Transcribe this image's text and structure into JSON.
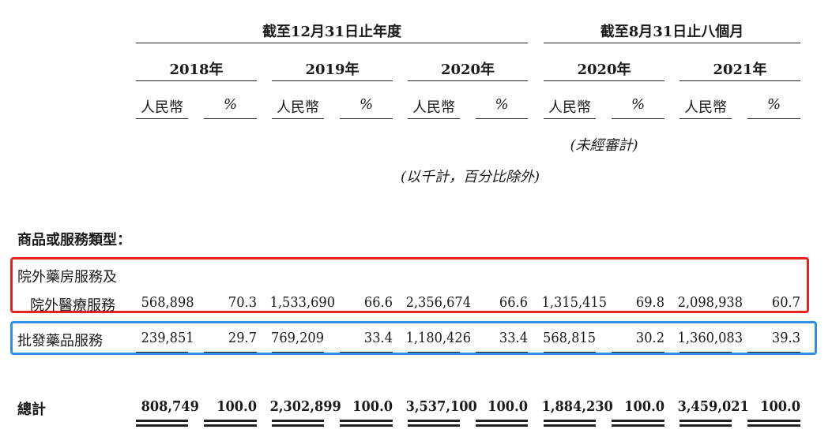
{
  "header": {
    "group1": "截至12月31日止年度",
    "group2": "截至8月31日止八個月",
    "years": [
      "2018年",
      "2019年",
      "2020年",
      "2020年",
      "2021年"
    ],
    "currency": "人民幣",
    "percent": "%",
    "unaudited": "(未經審計)",
    "unit_note": "(以千計，百分比除外)"
  },
  "section_label": "商品或服務類型：",
  "rows": [
    {
      "label_line1": "院外藥房服務及",
      "label_line2": "院外醫療服務",
      "values": [
        "568,898",
        "70.3",
        "1,533,690",
        "66.6",
        "2,356,674",
        "66.6",
        "1,315,415",
        "69.8",
        "2,098,938",
        "60.7"
      ]
    },
    {
      "label": "批發藥品服務",
      "values": [
        "239,851",
        "29.7",
        "769,209",
        "33.4",
        "1,180,426",
        "33.4",
        "568,815",
        "30.2",
        "1,360,083",
        "39.3"
      ]
    }
  ],
  "total": {
    "label": "總計",
    "values": [
      "808,749",
      "100.0",
      "2,302,899",
      "100.0",
      "3,537,100",
      "100.0",
      "1,884,230",
      "100.0",
      "3,459,021",
      "100.0"
    ]
  },
  "highlight_colors": {
    "red": "#e8231f",
    "blue": "#2f8fe6"
  }
}
